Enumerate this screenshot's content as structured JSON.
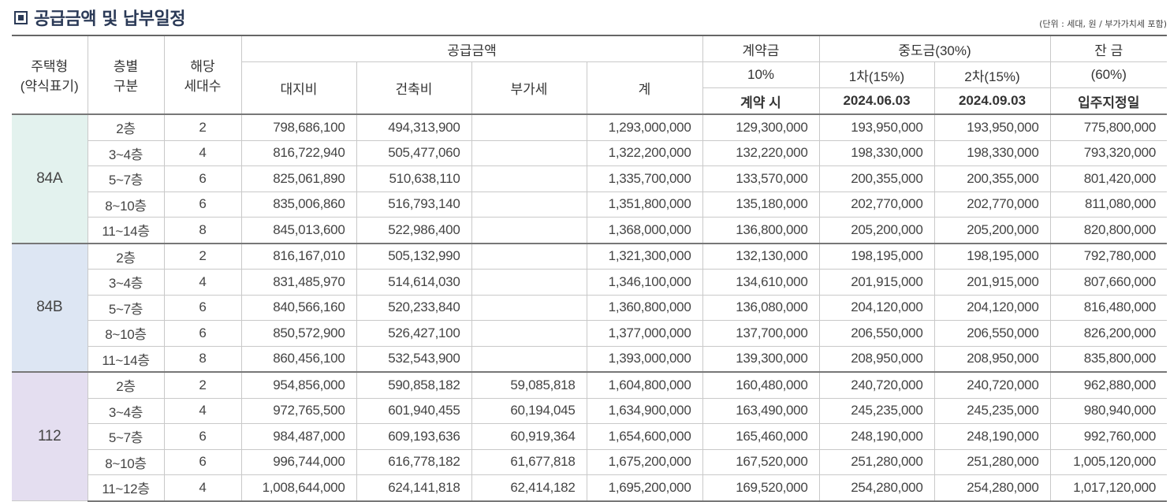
{
  "title": "공급금액 및 납부일정",
  "unit_note": "(단위 : 세대, 원 / 부가가치세 포함)",
  "header": {
    "type_col": "주택형\n(약식표기)",
    "floor_col": "층별\n구분",
    "count_col": "해당\n세대수",
    "supply": "공급금액",
    "land": "대지비",
    "building": "건축비",
    "vat": "부가세",
    "total": "계",
    "deposit": "계약금",
    "deposit_pct": "10%",
    "deposit_when": "계약 시",
    "middle": "중도금(30%)",
    "mid1": "1차(15%)",
    "mid2": "2차(15%)",
    "mid1_date": "2024.06.03",
    "mid2_date": "2024.09.03",
    "balance": "잔 금",
    "balance_pct": "(60%)",
    "balance_when": "입주지정일"
  },
  "groups": [
    {
      "type": "84A",
      "rows": [
        [
          "2층",
          "2",
          "798,686,100",
          "494,313,900",
          "",
          "1,293,000,000",
          "129,300,000",
          "193,950,000",
          "193,950,000",
          "775,800,000"
        ],
        [
          "3~4층",
          "4",
          "816,722,940",
          "505,477,060",
          "",
          "1,322,200,000",
          "132,220,000",
          "198,330,000",
          "198,330,000",
          "793,320,000"
        ],
        [
          "5~7층",
          "6",
          "825,061,890",
          "510,638,110",
          "",
          "1,335,700,000",
          "133,570,000",
          "200,355,000",
          "200,355,000",
          "801,420,000"
        ],
        [
          "8~10층",
          "6",
          "835,006,860",
          "516,793,140",
          "",
          "1,351,800,000",
          "135,180,000",
          "202,770,000",
          "202,770,000",
          "811,080,000"
        ],
        [
          "11~14층",
          "8",
          "845,013,600",
          "522,986,400",
          "",
          "1,368,000,000",
          "136,800,000",
          "205,200,000",
          "205,200,000",
          "820,800,000"
        ]
      ]
    },
    {
      "type": "84B",
      "rows": [
        [
          "2층",
          "2",
          "816,167,010",
          "505,132,990",
          "",
          "1,321,300,000",
          "132,130,000",
          "198,195,000",
          "198,195,000",
          "792,780,000"
        ],
        [
          "3~4층",
          "4",
          "831,485,970",
          "514,614,030",
          "",
          "1,346,100,000",
          "134,610,000",
          "201,915,000",
          "201,915,000",
          "807,660,000"
        ],
        [
          "5~7층",
          "6",
          "840,566,160",
          "520,233,840",
          "",
          "1,360,800,000",
          "136,080,000",
          "204,120,000",
          "204,120,000",
          "816,480,000"
        ],
        [
          "8~10층",
          "6",
          "850,572,900",
          "526,427,100",
          "",
          "1,377,000,000",
          "137,700,000",
          "206,550,000",
          "206,550,000",
          "826,200,000"
        ],
        [
          "11~14층",
          "8",
          "860,456,100",
          "532,543,900",
          "",
          "1,393,000,000",
          "139,300,000",
          "208,950,000",
          "208,950,000",
          "835,800,000"
        ]
      ]
    },
    {
      "type": "112",
      "rows": [
        [
          "2층",
          "2",
          "954,856,000",
          "590,858,182",
          "59,085,818",
          "1,604,800,000",
          "160,480,000",
          "240,720,000",
          "240,720,000",
          "962,880,000"
        ],
        [
          "3~4층",
          "4",
          "972,765,500",
          "601,940,455",
          "60,194,045",
          "1,634,900,000",
          "163,490,000",
          "245,235,000",
          "245,235,000",
          "980,940,000"
        ],
        [
          "5~7층",
          "6",
          "984,487,000",
          "609,193,636",
          "60,919,364",
          "1,654,600,000",
          "165,460,000",
          "248,190,000",
          "248,190,000",
          "992,760,000"
        ],
        [
          "8~10층",
          "6",
          "996,744,000",
          "616,778,182",
          "61,677,818",
          "1,675,200,000",
          "167,520,000",
          "251,280,000",
          "251,280,000",
          "1,005,120,000"
        ],
        [
          "11~12층",
          "4",
          "1,008,644,000",
          "624,141,818",
          "62,414,182",
          "1,695,200,000",
          "169,520,000",
          "254,280,000",
          "254,280,000",
          "1,017,120,000"
        ]
      ]
    }
  ]
}
